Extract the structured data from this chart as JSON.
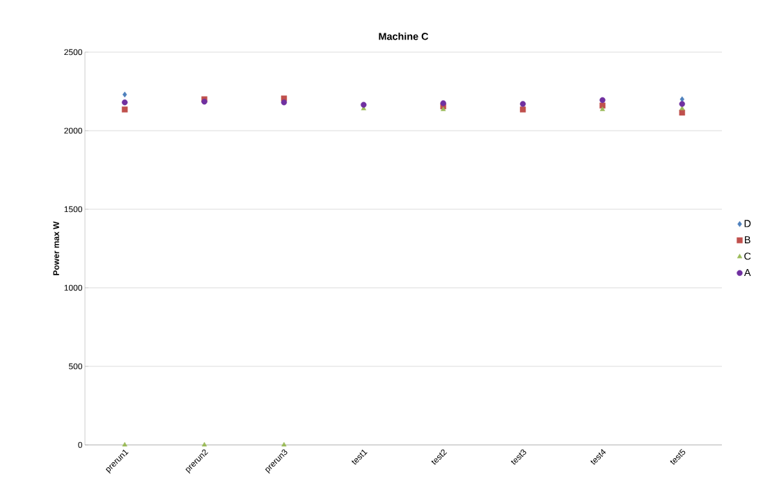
{
  "chart_data": {
    "type": "scatter",
    "title": "Machine C",
    "ylabel": "Power max W",
    "categories": [
      "prerun1",
      "prerun2",
      "prerun3",
      "test1",
      "test2",
      "test3",
      "test4",
      "test5"
    ],
    "series": [
      {
        "name": "D",
        "color": "#4f81bd",
        "marker": "diamond",
        "values": [
          2230,
          null,
          null,
          null,
          null,
          null,
          null,
          2200
        ]
      },
      {
        "name": "B",
        "color": "#c0504d",
        "marker": "square",
        "values": [
          2135,
          2200,
          2205,
          null,
          2155,
          2135,
          2160,
          2115
        ]
      },
      {
        "name": "C",
        "color": "#9bbb59",
        "marker": "triangle",
        "values": [
          0,
          0,
          0,
          2140,
          2135,
          null,
          2135,
          2140
        ]
      },
      {
        "name": "A",
        "color": "#7030a0",
        "marker": "circle",
        "values": [
          2180,
          2185,
          2180,
          2165,
          2175,
          2170,
          2195,
          2170
        ]
      }
    ],
    "ylim": [
      0,
      2500
    ],
    "yticks": [
      0,
      500,
      1000,
      1500,
      2000,
      2500
    ],
    "grid": "y",
    "legend": "right"
  }
}
